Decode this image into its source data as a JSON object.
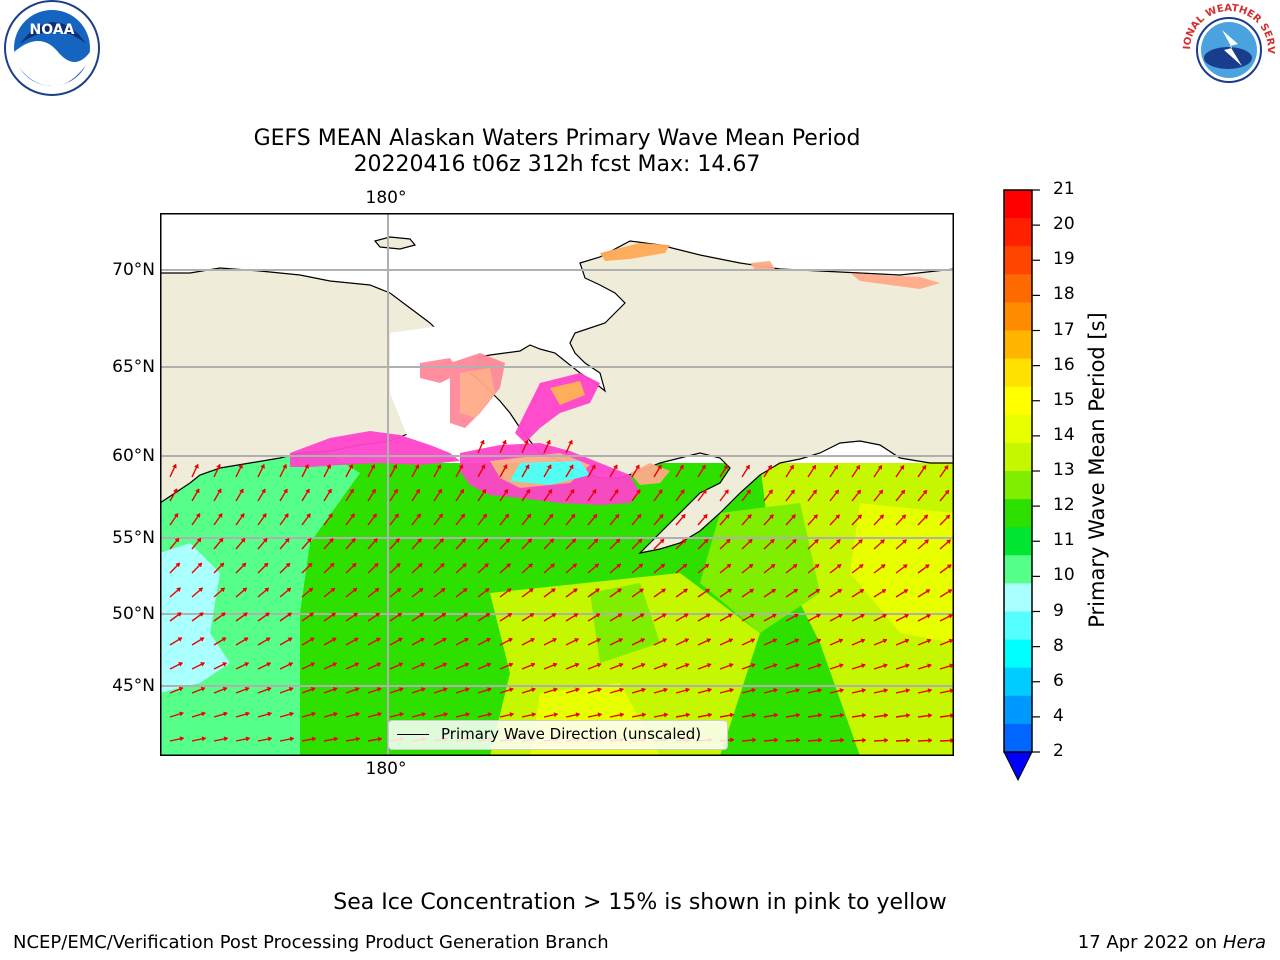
{
  "header": {
    "title_line1": "GEFS MEAN Alaskan Waters Primary Wave Mean Period",
    "title_line2": "20220416 t06z 312h fcst   Max: 14.67"
  },
  "logos": {
    "left": "NOAA",
    "right": "NATIONAL WEATHER SERVICE"
  },
  "map": {
    "lon_label_top": "180°",
    "lon_label_bottom": "180°",
    "lat_labels": [
      "70°N",
      "65°N",
      "60°N",
      "55°N",
      "50°N",
      "45°N"
    ],
    "legend_label": "Primary Wave Direction (unscaled)",
    "colors": {
      "land": "#efedd9",
      "arrow": "#ee0000",
      "grid": "#b0b0b0"
    }
  },
  "colorbar": {
    "label": "Primary Wave Mean Period [s]",
    "ticks": [
      "21",
      "20",
      "19",
      "18",
      "17",
      "16",
      "15",
      "14",
      "13",
      "12",
      "11",
      "10",
      "9",
      "8",
      "6",
      "4",
      "2"
    ],
    "colors": [
      "#ff0000",
      "#ff2000",
      "#ff4500",
      "#ff6a00",
      "#ff8c00",
      "#ffb400",
      "#ffe100",
      "#ffff00",
      "#e8ff00",
      "#c4f700",
      "#80ee00",
      "#2de000",
      "#00e633",
      "#55ff8a",
      "#aaffff",
      "#55ffff",
      "#00ffff",
      "#00ccff",
      "#0099ff",
      "#0066ff"
    ],
    "extend_color": "#0000ff"
  },
  "notes": {
    "ice": "Sea Ice Concentration > 15% is shown in pink to yellow"
  },
  "footer": {
    "left": "NCEP/EMC/Verification Post Processing Product Generation Branch",
    "right_date": "17 Apr 2022 on ",
    "right_host": "Hera"
  }
}
